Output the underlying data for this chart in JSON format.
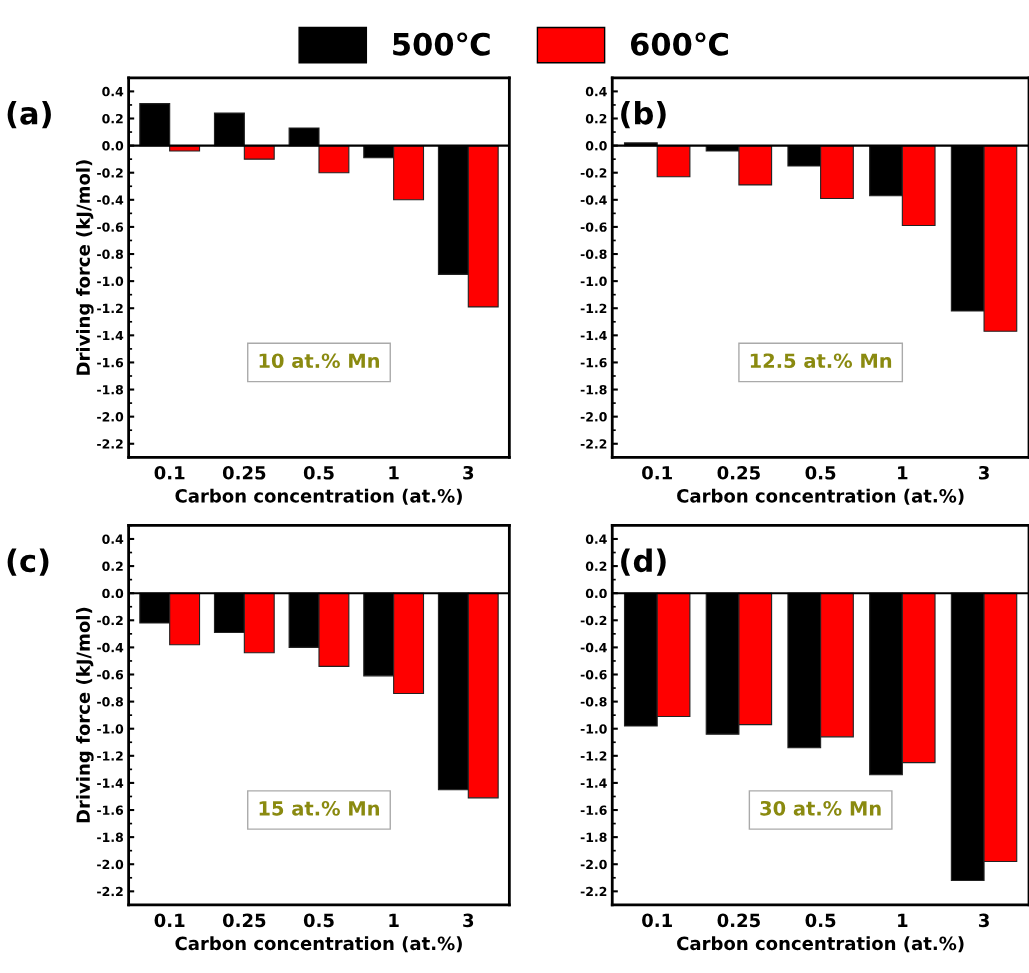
{
  "chart_data": [
    {
      "type": "bar",
      "title": "(a)",
      "xlabel": "Carbon concentration (at.%)",
      "ylabel": "Driving force (kJ/mol)",
      "categories": [
        "0.1",
        "0.25",
        "0.5",
        "1",
        "3"
      ],
      "ylim": [
        -2.3,
        0.5
      ],
      "yticks": [
        {
          "value": 0.4,
          "label": "0.4"
        },
        {
          "value": 0.2,
          "label": "0.2"
        },
        {
          "value": 0,
          "label": "0.0"
        },
        {
          "value": -0.2,
          "label": "-0.2"
        },
        {
          "value": -0.4,
          "label": "-0.4"
        },
        {
          "value": -0.6,
          "label": "-0.6"
        },
        {
          "value": -0.8,
          "label": "-0.8"
        },
        {
          "value": -1,
          "label": "-1.0"
        },
        {
          "value": -1.2,
          "label": "-1.2"
        },
        {
          "value": -1.4,
          "label": "-1.4"
        },
        {
          "value": -1.6,
          "label": "-1.6"
        },
        {
          "value": -1.8,
          "label": "-1.8"
        },
        {
          "value": -2,
          "label": "-2.0"
        },
        {
          "value": -2.2,
          "label": "-2.2"
        }
      ],
      "grid": false,
      "legend": "top",
      "annotations": [
        "10 at.% Mn"
      ],
      "ref_lines": [
        {
          "axis": "y",
          "value": 0
        }
      ],
      "series": [
        {
          "name": "500℃",
          "color": "#000000",
          "values": [
            0.31,
            0.24,
            0.13,
            -0.09,
            -0.95
          ]
        },
        {
          "name": "600℃",
          "color": "#ff0000",
          "values": [
            -0.04,
            -0.1,
            -0.2,
            -0.4,
            -1.19
          ]
        }
      ]
    },
    {
      "type": "bar",
      "title": "(b)",
      "xlabel": "Carbon concentration (at.%)",
      "categories": [
        "0.1",
        "0.25",
        "0.5",
        "1",
        "3"
      ],
      "ylim": [
        -2.3,
        0.5
      ],
      "yticks": [
        {
          "value": 0.4,
          "label": "0.4"
        },
        {
          "value": 0.2,
          "label": "0.2"
        },
        {
          "value": 0,
          "label": "0.0"
        },
        {
          "value": -0.2,
          "label": "-0.2"
        },
        {
          "value": -0.4,
          "label": "-0.4"
        },
        {
          "value": -0.6,
          "label": "-0.6"
        },
        {
          "value": -0.8,
          "label": "-0.8"
        },
        {
          "value": -1,
          "label": "-1.0"
        },
        {
          "value": -1.2,
          "label": "-1.2"
        },
        {
          "value": -1.4,
          "label": "-1.4"
        },
        {
          "value": -1.6,
          "label": "-1.6"
        },
        {
          "value": -1.8,
          "label": "-1.8"
        },
        {
          "value": -2,
          "label": "-2.0"
        },
        {
          "value": -2.2,
          "label": "-2.2"
        }
      ],
      "grid": false,
      "annotations": [
        "12.5 at.% Mn"
      ],
      "ref_lines": [
        {
          "axis": "y",
          "value": 0
        }
      ],
      "series": [
        {
          "color": "#000000",
          "values": [
            0.02,
            -0.04,
            -0.15,
            -0.37,
            -1.22
          ]
        },
        {
          "color": "#ff0000",
          "values": [
            -0.23,
            -0.29,
            -0.39,
            -0.59,
            -1.37
          ]
        }
      ]
    },
    {
      "type": "bar",
      "title": "(c)",
      "xlabel": "Carbon concentration (at.%)",
      "ylabel": "Driving force (kJ/mol)",
      "categories": [
        "0.1",
        "0.25",
        "0.5",
        "1",
        "3"
      ],
      "ylim": [
        -2.3,
        0.5
      ],
      "yticks": [
        {
          "value": 0.4,
          "label": "0.4"
        },
        {
          "value": 0.2,
          "label": "0.2"
        },
        {
          "value": 0,
          "label": "0.0"
        },
        {
          "value": -0.2,
          "label": "-0.2"
        },
        {
          "value": -0.4,
          "label": "-0.4"
        },
        {
          "value": -0.6,
          "label": "-0.6"
        },
        {
          "value": -0.8,
          "label": "-0.8"
        },
        {
          "value": -1,
          "label": "-1.0"
        },
        {
          "value": -1.2,
          "label": "-1.2"
        },
        {
          "value": -1.4,
          "label": "-1.4"
        },
        {
          "value": -1.6,
          "label": "-1.6"
        },
        {
          "value": -1.8,
          "label": "-1.8"
        },
        {
          "value": -2,
          "label": "-2.0"
        },
        {
          "value": -2.2,
          "label": "-2.2"
        }
      ],
      "grid": false,
      "annotations": [
        "15 at.% Mn"
      ],
      "ref_lines": [
        {
          "axis": "y",
          "value": 0
        }
      ],
      "series": [
        {
          "color": "#000000",
          "values": [
            -0.22,
            -0.29,
            -0.4,
            -0.61,
            -1.45
          ]
        },
        {
          "color": "#ff0000",
          "values": [
            -0.38,
            -0.44,
            -0.54,
            -0.74,
            -1.51
          ]
        }
      ]
    },
    {
      "type": "bar",
      "title": "(d)",
      "xlabel": "Carbon concentration (at.%)",
      "categories": [
        "0.1",
        "0.25",
        "0.5",
        "1",
        "3"
      ],
      "ylim": [
        -2.3,
        0.5
      ],
      "yticks": [
        {
          "value": 0.4,
          "label": "0.4"
        },
        {
          "value": 0.2,
          "label": "0.2"
        },
        {
          "value": 0,
          "label": "0.0"
        },
        {
          "value": -0.2,
          "label": "-0.2"
        },
        {
          "value": -0.4,
          "label": "-0.4"
        },
        {
          "value": -0.6,
          "label": "-0.6"
        },
        {
          "value": -0.8,
          "label": "-0.8"
        },
        {
          "value": -1,
          "label": "-1.0"
        },
        {
          "value": -1.2,
          "label": "-1.2"
        },
        {
          "value": -1.4,
          "label": "-1.4"
        },
        {
          "value": -1.6,
          "label": "-1.6"
        },
        {
          "value": -1.8,
          "label": "-1.8"
        },
        {
          "value": -2,
          "label": "-2.0"
        },
        {
          "value": -2.2,
          "label": "-2.2"
        }
      ],
      "grid": false,
      "annotations": [
        "30 at.% Mn"
      ],
      "ref_lines": [
        {
          "axis": "y",
          "value": 0
        }
      ],
      "series": [
        {
          "color": "#000000",
          "values": [
            -0.98,
            -1.04,
            -1.14,
            -1.34,
            -2.12
          ]
        },
        {
          "color": "#ff0000",
          "values": [
            -0.91,
            -0.97,
            -1.06,
            -1.25,
            -1.98
          ]
        }
      ]
    }
  ]
}
